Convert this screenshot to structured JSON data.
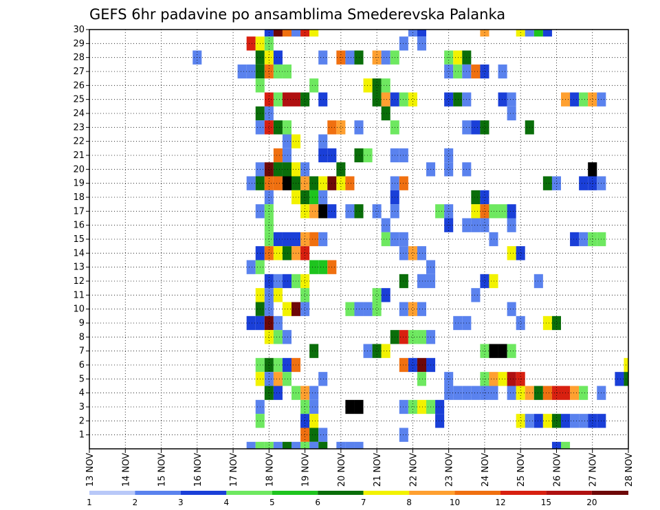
{
  "chart_data": {
    "type": "heatmap",
    "title": "GEFS 6hr padavine po ansamblima Smederevska Palanka",
    "xlabel": "",
    "ylabel": "",
    "x_ticks": [
      "13 NOV",
      "14 NOV",
      "15 NOV",
      "16 NOV",
      "17 NOV",
      "18 NOV",
      "19 NOV",
      "20 NOV",
      "21 NOV",
      "22 NOV",
      "23 NOV",
      "24 NOV",
      "25 NOV",
      "26 NOV",
      "27 NOV",
      "28 NOV"
    ],
    "xlim": [
      0,
      60
    ],
    "x_unit": "6-hour steps after 13 NOV 00Z",
    "y_ticks": [
      1,
      2,
      3,
      4,
      5,
      6,
      7,
      8,
      9,
      10,
      11,
      12,
      13,
      14,
      15,
      16,
      17,
      18,
      19,
      20,
      21,
      22,
      23,
      24,
      25,
      26,
      27,
      28,
      29,
      30
    ],
    "ylim": [
      0,
      30
    ],
    "grid": true,
    "legend": {
      "position": "bottom",
      "labels": [
        "1",
        "2",
        "3",
        "4",
        "5",
        "6",
        "7",
        "8",
        "10",
        "12",
        "15",
        "20"
      ],
      "colors": [
        "#b8c8f8",
        "#5a82ee",
        "#1a3fd8",
        "#6ee860",
        "#1ec41e",
        "#0a6e0a",
        "#f2f200",
        "#ffa030",
        "#f07010",
        "#d82010",
        "#b01010",
        "#6e0808"
      ]
    },
    "cells": [
      [
        20,
        30,
        2
      ],
      [
        21,
        30,
        11
      ],
      [
        22,
        30,
        8
      ],
      [
        23,
        30,
        1
      ],
      [
        24,
        30,
        9
      ],
      [
        25,
        30,
        6
      ],
      [
        36,
        30,
        1
      ],
      [
        37,
        30,
        2
      ],
      [
        44,
        30,
        7
      ],
      [
        48,
        30,
        6
      ],
      [
        49,
        30,
        1
      ],
      [
        50,
        30,
        4
      ],
      [
        51,
        30,
        2
      ],
      [
        18,
        29,
        9
      ],
      [
        19,
        29,
        6
      ],
      [
        20,
        29,
        3
      ],
      [
        35,
        29,
        1
      ],
      [
        37,
        29,
        1
      ],
      [
        12,
        28,
        1
      ],
      [
        19,
        28,
        5
      ],
      [
        20,
        28,
        6
      ],
      [
        21,
        28,
        2
      ],
      [
        26,
        28,
        1
      ],
      [
        28,
        28,
        8
      ],
      [
        29,
        28,
        1
      ],
      [
        30,
        28,
        5
      ],
      [
        32,
        28,
        7
      ],
      [
        33,
        28,
        1
      ],
      [
        34,
        28,
        3
      ],
      [
        40,
        28,
        3
      ],
      [
        41,
        28,
        6
      ],
      [
        42,
        28,
        5
      ],
      [
        17,
        27,
        1
      ],
      [
        18,
        27,
        1
      ],
      [
        19,
        27,
        5
      ],
      [
        20,
        27,
        8
      ],
      [
        21,
        27,
        3
      ],
      [
        22,
        27,
        3
      ],
      [
        40,
        27,
        1
      ],
      [
        41,
        27,
        3
      ],
      [
        42,
        27,
        1
      ],
      [
        43,
        27,
        8
      ],
      [
        44,
        27,
        2
      ],
      [
        46,
        27,
        1
      ],
      [
        19,
        26,
        3
      ],
      [
        25,
        26,
        3
      ],
      [
        31,
        26,
        6
      ],
      [
        32,
        26,
        5
      ],
      [
        33,
        26,
        3
      ],
      [
        20,
        25,
        9
      ],
      [
        21,
        25,
        3
      ],
      [
        22,
        25,
        10
      ],
      [
        23,
        25,
        10
      ],
      [
        24,
        25,
        5
      ],
      [
        26,
        25,
        2
      ],
      [
        32,
        25,
        5
      ],
      [
        33,
        25,
        7
      ],
      [
        34,
        25,
        2
      ],
      [
        35,
        25,
        3
      ],
      [
        36,
        25,
        6
      ],
      [
        40,
        25,
        2
      ],
      [
        41,
        25,
        5
      ],
      [
        42,
        25,
        1
      ],
      [
        46,
        25,
        2
      ],
      [
        47,
        25,
        1
      ],
      [
        53,
        25,
        7
      ],
      [
        54,
        25,
        2
      ],
      [
        55,
        25,
        3
      ],
      [
        56,
        25,
        7
      ],
      [
        57,
        25,
        1
      ],
      [
        19,
        24,
        5
      ],
      [
        20,
        24,
        1
      ],
      [
        33,
        24,
        5
      ],
      [
        47,
        24,
        1
      ],
      [
        19,
        23,
        1
      ],
      [
        20,
        23,
        9
      ],
      [
        21,
        23,
        5
      ],
      [
        22,
        23,
        3
      ],
      [
        27,
        23,
        8
      ],
      [
        28,
        23,
        7
      ],
      [
        30,
        23,
        1
      ],
      [
        34,
        23,
        3
      ],
      [
        42,
        23,
        1
      ],
      [
        43,
        23,
        2
      ],
      [
        44,
        23,
        5
      ],
      [
        49,
        23,
        5
      ],
      [
        22,
        22,
        1
      ],
      [
        23,
        22,
        6
      ],
      [
        26,
        22,
        1
      ],
      [
        21,
        21,
        8
      ],
      [
        22,
        21,
        1
      ],
      [
        26,
        21,
        2
      ],
      [
        27,
        21,
        2
      ],
      [
        30,
        21,
        5
      ],
      [
        31,
        21,
        3
      ],
      [
        34,
        21,
        1
      ],
      [
        35,
        21,
        1
      ],
      [
        40,
        21,
        1
      ],
      [
        19,
        20,
        1
      ],
      [
        20,
        20,
        11
      ],
      [
        21,
        20,
        5
      ],
      [
        22,
        20,
        5
      ],
      [
        23,
        20,
        6
      ],
      [
        24,
        20,
        1
      ],
      [
        28,
        20,
        5
      ],
      [
        38,
        20,
        1
      ],
      [
        40,
        20,
        1
      ],
      [
        42,
        20,
        1
      ],
      [
        56,
        20,
        12
      ],
      [
        18,
        19,
        1
      ],
      [
        19,
        19,
        5
      ],
      [
        20,
        19,
        8
      ],
      [
        21,
        19,
        8
      ],
      [
        22,
        19,
        12
      ],
      [
        23,
        19,
        5
      ],
      [
        24,
        19,
        7
      ],
      [
        25,
        19,
        5
      ],
      [
        26,
        19,
        6
      ],
      [
        27,
        19,
        11
      ],
      [
        28,
        19,
        6
      ],
      [
        29,
        19,
        8
      ],
      [
        34,
        19,
        1
      ],
      [
        35,
        19,
        8
      ],
      [
        51,
        19,
        5
      ],
      [
        52,
        19,
        1
      ],
      [
        55,
        19,
        2
      ],
      [
        56,
        19,
        2
      ],
      [
        57,
        19,
        1
      ],
      [
        20,
        18,
        1
      ],
      [
        23,
        18,
        6
      ],
      [
        24,
        18,
        5
      ],
      [
        25,
        18,
        4
      ],
      [
        26,
        18,
        1
      ],
      [
        34,
        18,
        2
      ],
      [
        43,
        18,
        5
      ],
      [
        44,
        18,
        2
      ],
      [
        19,
        17,
        1
      ],
      [
        20,
        17,
        3
      ],
      [
        24,
        17,
        6
      ],
      [
        25,
        17,
        7
      ],
      [
        26,
        17,
        12
      ],
      [
        27,
        17,
        2
      ],
      [
        29,
        17,
        1
      ],
      [
        30,
        17,
        5
      ],
      [
        32,
        17,
        1
      ],
      [
        34,
        17,
        1
      ],
      [
        39,
        17,
        3
      ],
      [
        40,
        17,
        1
      ],
      [
        43,
        17,
        6
      ],
      [
        44,
        17,
        8
      ],
      [
        45,
        17,
        3
      ],
      [
        46,
        17,
        3
      ],
      [
        47,
        17,
        2
      ],
      [
        20,
        16,
        3
      ],
      [
        33,
        16,
        1
      ],
      [
        40,
        16,
        2
      ],
      [
        42,
        16,
        1
      ],
      [
        43,
        16,
        1
      ],
      [
        44,
        16,
        1
      ],
      [
        47,
        16,
        1
      ],
      [
        20,
        15,
        3
      ],
      [
        21,
        15,
        2
      ],
      [
        22,
        15,
        2
      ],
      [
        23,
        15,
        2
      ],
      [
        24,
        15,
        7
      ],
      [
        25,
        15,
        8
      ],
      [
        26,
        15,
        1
      ],
      [
        33,
        15,
        3
      ],
      [
        34,
        15,
        1
      ],
      [
        35,
        15,
        1
      ],
      [
        45,
        15,
        1
      ],
      [
        54,
        15,
        2
      ],
      [
        55,
        15,
        1
      ],
      [
        56,
        15,
        3
      ],
      [
        57,
        15,
        3
      ],
      [
        19,
        14,
        2
      ],
      [
        20,
        14,
        8
      ],
      [
        21,
        14,
        6
      ],
      [
        22,
        14,
        5
      ],
      [
        23,
        14,
        7
      ],
      [
        24,
        14,
        9
      ],
      [
        35,
        14,
        1
      ],
      [
        36,
        14,
        7
      ],
      [
        37,
        14,
        1
      ],
      [
        47,
        14,
        6
      ],
      [
        48,
        14,
        2
      ],
      [
        18,
        13,
        1
      ],
      [
        19,
        13,
        3
      ],
      [
        25,
        13,
        4
      ],
      [
        26,
        13,
        4
      ],
      [
        27,
        13,
        8
      ],
      [
        38,
        13,
        1
      ],
      [
        20,
        12,
        2
      ],
      [
        21,
        12,
        1
      ],
      [
        22,
        12,
        2
      ],
      [
        23,
        12,
        3
      ],
      [
        24,
        12,
        6
      ],
      [
        35,
        12,
        5
      ],
      [
        37,
        12,
        1
      ],
      [
        38,
        12,
        1
      ],
      [
        44,
        12,
        2
      ],
      [
        45,
        12,
        6
      ],
      [
        50,
        12,
        1
      ],
      [
        19,
        11,
        6
      ],
      [
        20,
        11,
        1
      ],
      [
        21,
        11,
        6
      ],
      [
        24,
        11,
        3
      ],
      [
        32,
        11,
        3
      ],
      [
        33,
        11,
        2
      ],
      [
        43,
        11,
        1
      ],
      [
        19,
        10,
        5
      ],
      [
        20,
        10,
        1
      ],
      [
        22,
        10,
        6
      ],
      [
        23,
        10,
        11
      ],
      [
        24,
        10,
        1
      ],
      [
        29,
        10,
        3
      ],
      [
        30,
        10,
        1
      ],
      [
        31,
        10,
        1
      ],
      [
        32,
        10,
        3
      ],
      [
        35,
        10,
        1
      ],
      [
        36,
        10,
        7
      ],
      [
        37,
        10,
        1
      ],
      [
        47,
        10,
        1
      ],
      [
        18,
        9,
        2
      ],
      [
        19,
        9,
        2
      ],
      [
        20,
        9,
        11
      ],
      [
        21,
        9,
        1
      ],
      [
        41,
        9,
        1
      ],
      [
        42,
        9,
        1
      ],
      [
        48,
        9,
        1
      ],
      [
        51,
        9,
        6
      ],
      [
        52,
        9,
        5
      ],
      [
        20,
        8,
        6
      ],
      [
        21,
        8,
        3
      ],
      [
        22,
        8,
        1
      ],
      [
        34,
        8,
        5
      ],
      [
        35,
        8,
        9
      ],
      [
        36,
        8,
        3
      ],
      [
        37,
        8,
        3
      ],
      [
        38,
        8,
        1
      ],
      [
        25,
        7,
        5
      ],
      [
        31,
        7,
        1
      ],
      [
        32,
        7,
        5
      ],
      [
        33,
        7,
        6
      ],
      [
        44,
        7,
        3
      ],
      [
        45,
        7,
        12
      ],
      [
        46,
        7,
        12
      ],
      [
        47,
        7,
        3
      ],
      [
        19,
        6,
        3
      ],
      [
        20,
        6,
        5
      ],
      [
        21,
        6,
        3
      ],
      [
        22,
        6,
        2
      ],
      [
        23,
        6,
        8
      ],
      [
        35,
        6,
        8
      ],
      [
        36,
        6,
        2
      ],
      [
        37,
        6,
        11
      ],
      [
        38,
        6,
        2
      ],
      [
        60,
        6,
        6
      ],
      [
        19,
        5,
        6
      ],
      [
        20,
        5,
        1
      ],
      [
        21,
        5,
        7
      ],
      [
        22,
        5,
        3
      ],
      [
        26,
        5,
        1
      ],
      [
        37,
        5,
        3
      ],
      [
        40,
        5,
        1
      ],
      [
        44,
        5,
        3
      ],
      [
        45,
        5,
        7
      ],
      [
        46,
        5,
        6
      ],
      [
        47,
        5,
        10
      ],
      [
        48,
        5,
        9
      ],
      [
        59,
        5,
        2
      ],
      [
        60,
        5,
        5
      ],
      [
        20,
        4,
        5
      ],
      [
        21,
        4,
        2
      ],
      [
        23,
        4,
        3
      ],
      [
        24,
        4,
        7
      ],
      [
        25,
        4,
        1
      ],
      [
        40,
        4,
        1
      ],
      [
        41,
        4,
        1
      ],
      [
        42,
        4,
        1
      ],
      [
        43,
        4,
        1
      ],
      [
        44,
        4,
        1
      ],
      [
        45,
        4,
        1
      ],
      [
        47,
        4,
        1
      ],
      [
        48,
        4,
        6
      ],
      [
        49,
        4,
        7
      ],
      [
        50,
        4,
        5
      ],
      [
        51,
        4,
        8
      ],
      [
        52,
        4,
        9
      ],
      [
        53,
        4,
        9
      ],
      [
        54,
        4,
        7
      ],
      [
        55,
        4,
        3
      ],
      [
        57,
        4,
        1
      ],
      [
        19,
        3,
        1
      ],
      [
        24,
        3,
        3
      ],
      [
        25,
        3,
        1
      ],
      [
        29,
        3,
        12
      ],
      [
        30,
        3,
        12
      ],
      [
        35,
        3,
        1
      ],
      [
        36,
        3,
        3
      ],
      [
        37,
        3,
        6
      ],
      [
        38,
        3,
        3
      ],
      [
        39,
        3,
        2
      ],
      [
        19,
        2,
        3
      ],
      [
        24,
        2,
        2
      ],
      [
        25,
        2,
        6
      ],
      [
        39,
        2,
        2
      ],
      [
        48,
        2,
        6
      ],
      [
        49,
        2,
        1
      ],
      [
        50,
        2,
        2
      ],
      [
        51,
        2,
        6
      ],
      [
        52,
        2,
        5
      ],
      [
        53,
        2,
        2
      ],
      [
        54,
        2,
        1
      ],
      [
        55,
        2,
        1
      ],
      [
        56,
        2,
        2
      ],
      [
        57,
        2,
        2
      ],
      [
        24,
        1,
        8
      ],
      [
        25,
        1,
        5
      ],
      [
        26,
        1,
        1
      ],
      [
        35,
        1,
        1
      ],
      [
        18,
        0,
        1
      ],
      [
        19,
        0,
        3
      ],
      [
        20,
        0,
        3
      ],
      [
        21,
        0,
        1
      ],
      [
        22,
        0,
        5
      ],
      [
        23,
        0,
        1
      ],
      [
        24,
        0,
        3
      ],
      [
        25,
        0,
        1
      ],
      [
        26,
        0,
        5
      ],
      [
        28,
        0,
        1
      ],
      [
        29,
        0,
        1
      ],
      [
        30,
        0,
        1
      ],
      [
        52,
        0,
        2
      ],
      [
        53,
        0,
        3
      ]
    ]
  }
}
